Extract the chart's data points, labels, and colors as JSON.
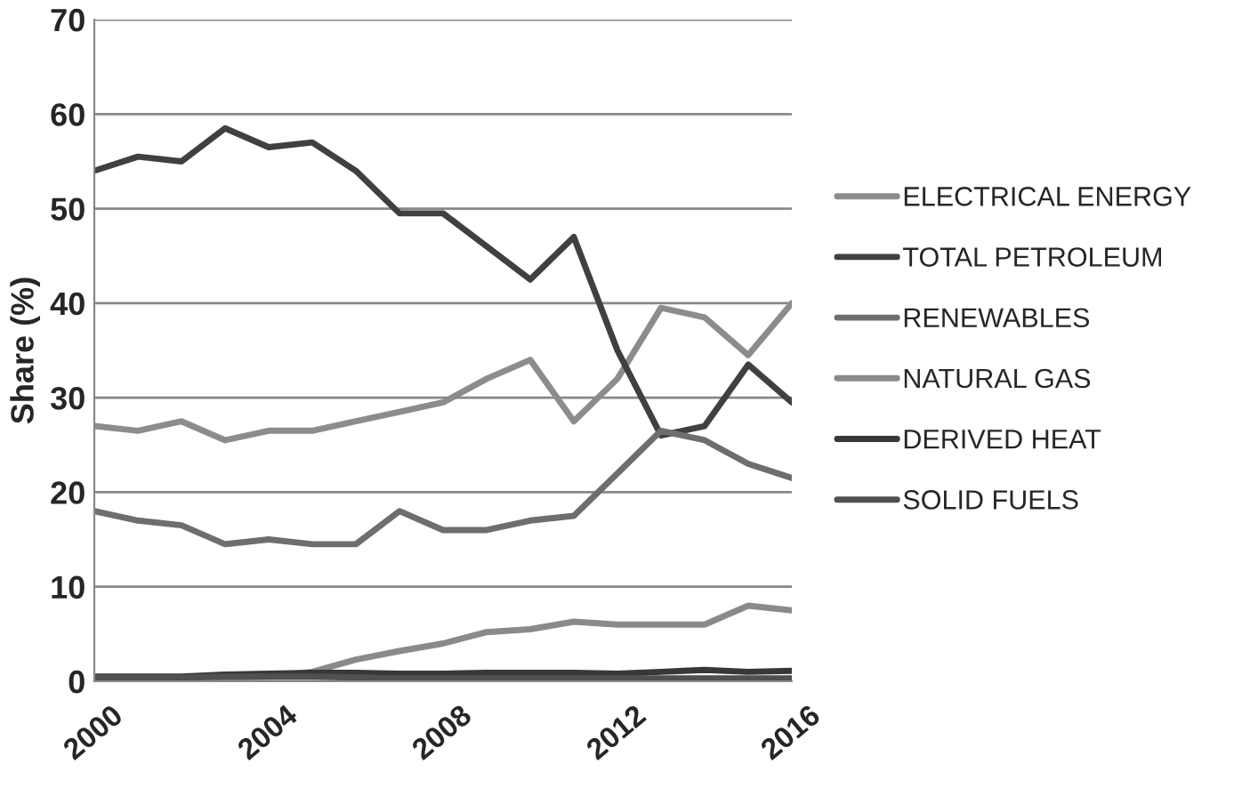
{
  "chart_data": {
    "type": "line",
    "ylabel": "Share (%)",
    "x": [
      2000,
      2001,
      2002,
      2003,
      2004,
      2005,
      2006,
      2007,
      2008,
      2009,
      2010,
      2011,
      2012,
      2013,
      2014,
      2015,
      2016
    ],
    "series": [
      {
        "name": "ELECTRICAL ENERGY",
        "color": "#8c8c8c",
        "values": [
          27,
          26.5,
          27.5,
          25.5,
          26.5,
          26.5,
          27.5,
          28.5,
          29.5,
          32,
          34,
          27.5,
          32,
          39.5,
          38.5,
          34.5,
          40
        ]
      },
      {
        "name": "TOTAL PETROLEUM",
        "color": "#404040",
        "values": [
          54,
          55.5,
          55,
          58.5,
          56.5,
          57,
          54,
          49.5,
          49.5,
          46,
          42.5,
          47,
          35,
          26,
          27,
          33.5,
          29.5
        ]
      },
      {
        "name": "RENEWABLES",
        "color": "#6e6e6e",
        "values": [
          18,
          17,
          16.5,
          14.5,
          15,
          14.5,
          14.5,
          18,
          16,
          16,
          17,
          17.5,
          22,
          26.5,
          25.5,
          23,
          21.5
        ]
      },
      {
        "name": "NATURAL GAS",
        "color": "#8a8a8a",
        "values": [
          0.3,
          0.3,
          0.3,
          0.4,
          0.5,
          1,
          2.3,
          3.2,
          4,
          5.2,
          5.5,
          6.3,
          6,
          6,
          6,
          8,
          7.5
        ]
      },
      {
        "name": "DERIVED HEAT",
        "color": "#383838",
        "values": [
          0.5,
          0.5,
          0.5,
          0.7,
          0.8,
          0.9,
          0.9,
          0.8,
          0.8,
          0.9,
          0.9,
          0.9,
          0.8,
          1,
          1.2,
          1,
          1.1
        ]
      },
      {
        "name": "SOLID FUELS",
        "color": "#505050",
        "values": [
          0.4,
          0.4,
          0.4,
          0.5,
          0.5,
          0.5,
          0.4,
          0.3,
          0.3,
          0.3,
          0.3,
          0.3,
          0.3,
          0.3,
          0.3,
          0.3,
          0.3
        ]
      }
    ],
    "xlim": [
      2000,
      2016
    ],
    "xticks": [
      2000,
      2004,
      2008,
      2012,
      2016
    ],
    "ylim": [
      0,
      70
    ],
    "yticks": [
      0,
      10,
      20,
      30,
      40,
      50,
      60,
      70
    ],
    "grid": "y",
    "legend": "right",
    "marker": "none",
    "line_style": "solid"
  }
}
